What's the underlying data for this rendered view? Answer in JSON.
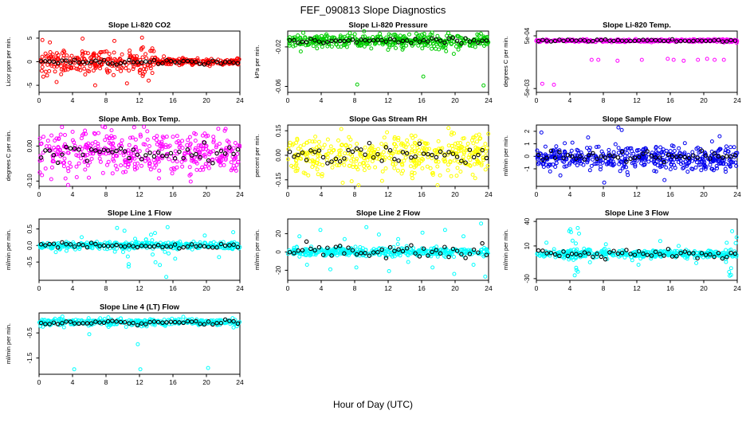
{
  "title": "FEF_090813  Slope Diagnostics",
  "xlabel": "Hour of Day (UTC)",
  "x_ticks": [
    0,
    4,
    8,
    12,
    16,
    20,
    24
  ],
  "marker_style": "open-circle",
  "overlay_color": "#000000",
  "chart_data": [
    {
      "seed": 101,
      "type": "scatter",
      "title": "Slope Li-820 CO2",
      "ylabel": "Licor ppm per min.",
      "color": "#FF0000",
      "xlim": [
        0,
        24
      ],
      "ylim": [
        -6.5,
        6.5
      ],
      "y_ticks": [
        {
          "v": -5,
          "label": "-5"
        },
        {
          "v": 0,
          "label": "0"
        },
        {
          "v": 5,
          "label": "5"
        }
      ],
      "band": {
        "center": 0,
        "spread": 1.3,
        "n": 420
      },
      "taper": {
        "after": 14,
        "spread": 0.35
      },
      "outliers": [
        [
          0.4,
          4.6
        ],
        [
          1.3,
          4.1
        ],
        [
          2.1,
          -4.3
        ],
        [
          5.2,
          4.9
        ],
        [
          6.7,
          -5.0
        ],
        [
          9.0,
          4.4
        ],
        [
          10.5,
          -4.6
        ],
        [
          12.3,
          5.1
        ],
        [
          13.1,
          -4.0
        ]
      ],
      "means": {
        "n": 48,
        "center": 0,
        "spread": 0.25
      }
    },
    {
      "seed": 202,
      "type": "scatter",
      "title": "Slope Li-820 Pressure",
      "ylabel": "kPa per min.",
      "color": "#00CD00",
      "xlim": [
        0,
        24
      ],
      "ylim": [
        -0.066,
        -0.004
      ],
      "y_ticks": [
        {
          "v": -0.02,
          "label": "-0.02"
        },
        {
          "v": -0.06,
          "label": "-0.06"
        }
      ],
      "band": {
        "center": -0.014,
        "spread": 0.0035,
        "n": 420
      },
      "outliers": [
        [
          8.3,
          -0.058
        ],
        [
          16.2,
          -0.05
        ],
        [
          23.4,
          -0.059
        ]
      ],
      "means": {
        "n": 48,
        "center": -0.014,
        "spread": 0.0012
      }
    },
    {
      "seed": 303,
      "type": "scatter",
      "title": "Slope Li-820 Temp.",
      "ylabel": "degrees C per min.",
      "color": "#FF00FF",
      "xlim": [
        0,
        24
      ],
      "ylim": [
        -0.0054,
        0.001
      ],
      "y_ticks": [
        {
          "v": 0.0005,
          "label": "5e-04"
        },
        {
          "v": -0.005,
          "label": "-5e-03"
        }
      ],
      "band": {
        "center": 0.0,
        "spread": 7e-05,
        "n": 400
      },
      "outliers": [
        [
          0.7,
          -0.0045
        ],
        [
          2.1,
          -0.0046
        ],
        [
          6.6,
          -0.002
        ],
        [
          7.4,
          -0.002
        ],
        [
          9.7,
          -0.0021
        ],
        [
          12.6,
          -0.002
        ],
        [
          15.7,
          -0.0019
        ],
        [
          16.4,
          -0.002
        ],
        [
          17.6,
          -0.0021
        ],
        [
          19.3,
          -0.002
        ],
        [
          20.4,
          -0.0019
        ],
        [
          21.3,
          -0.002
        ],
        [
          22.4,
          -0.002
        ]
      ],
      "means": {
        "n": 48,
        "center": 0.0,
        "spread": 5e-05
      }
    },
    {
      "seed": 404,
      "type": "scatter",
      "title": "Slope Amb. Box Temp.",
      "ylabel": "degrees C per min.",
      "color": "#FF00FF",
      "xlim": [
        0,
        24
      ],
      "ylim": [
        -0.115,
        0.06
      ],
      "y_ticks": [
        {
          "v": 0.0,
          "label": "0.00"
        },
        {
          "v": -0.1,
          "label": "-0.10"
        }
      ],
      "band": {
        "center": -0.02,
        "spread": 0.032,
        "n": 430
      },
      "outliers": [],
      "means": {
        "n": 48,
        "center": -0.02,
        "spread": 0.012
      }
    },
    {
      "seed": 505,
      "type": "scatter",
      "title": "Slope Gas Stream RH",
      "ylabel": "percent per min.",
      "color": "#FFFF00",
      "xlim": [
        0,
        24
      ],
      "ylim": [
        -0.19,
        0.185
      ],
      "y_ticks": [
        {
          "v": 0.15,
          "label": "0.15"
        },
        {
          "v": 0.0,
          "label": "0.00"
        },
        {
          "v": -0.15,
          "label": "-0.15"
        }
      ],
      "band": {
        "center": 0,
        "spread": 0.065,
        "n": 430
      },
      "outliers": [],
      "means": {
        "n": 48,
        "center": 0,
        "spread": 0.03
      }
    },
    {
      "seed": 606,
      "type": "scatter",
      "title": "Slope Sample Flow",
      "ylabel": "ml/min per min.",
      "color": "#0000EE",
      "xlim": [
        0,
        24
      ],
      "ylim": [
        -2.4,
        2.5
      ],
      "y_ticks": [
        {
          "v": -1,
          "label": "-1"
        },
        {
          "v": 0,
          "label": "0"
        },
        {
          "v": 1,
          "label": "1"
        },
        {
          "v": 2,
          "label": "2"
        }
      ],
      "band": {
        "center": -0.15,
        "spread": 0.5,
        "n": 460
      },
      "outliers": [
        [
          0.6,
          1.9
        ],
        [
          9.8,
          2.3
        ],
        [
          10.2,
          2.1
        ],
        [
          21.9,
          1.6
        ],
        [
          8.1,
          -2.1
        ],
        [
          15.3,
          -1.9
        ]
      ],
      "means": {
        "n": 48,
        "center": 0,
        "spread": 0.2
      }
    },
    {
      "seed": 707,
      "type": "scatter",
      "title": "Slope Line 1 Flow",
      "ylabel": "ml/min per min.",
      "color": "#00FFFF",
      "xlim": [
        0,
        24
      ],
      "ylim": [
        -1.05,
        0.8
      ],
      "y_ticks": [
        {
          "v": 0.5,
          "label": "0.5"
        },
        {
          "v": 0.0,
          "label": "0.0"
        },
        {
          "v": -0.5,
          "label": "-0.5"
        }
      ],
      "band": {
        "center": 0,
        "spread": 0.05,
        "n": 380
      },
      "clusters": [
        {
          "x0": 9,
          "x1": 16.5,
          "n": 26,
          "y0": -0.65,
          "y1": 0.6
        }
      ],
      "outliers": [
        [
          15.2,
          -0.95
        ],
        [
          19.8,
          0.3
        ],
        [
          21.5,
          -0.35
        ],
        [
          23.2,
          0.4
        ],
        [
          5.1,
          0.25
        ],
        [
          2.0,
          -0.2
        ]
      ],
      "means": {
        "n": 48,
        "center": 0,
        "spread": 0.04
      }
    },
    {
      "seed": 808,
      "type": "scatter",
      "title": "Slope Line 2 Flow",
      "ylabel": "ml/min per min.",
      "color": "#00FFFF",
      "xlim": [
        0,
        24
      ],
      "ylim": [
        -31,
        36
      ],
      "y_ticks": [
        {
          "v": -20,
          "label": "-20"
        },
        {
          "v": 0,
          "label": "0"
        },
        {
          "v": 20,
          "label": "20"
        }
      ],
      "band": {
        "center": 0,
        "spread": 2.2,
        "n": 400
      },
      "outliers": [
        [
          1.4,
          17
        ],
        [
          2.3,
          -14
        ],
        [
          3.9,
          24
        ],
        [
          5.1,
          -19
        ],
        [
          6.8,
          14
        ],
        [
          8.2,
          -17
        ],
        [
          9.4,
          27
        ],
        [
          10.9,
          19
        ],
        [
          12.1,
          -21
        ],
        [
          13.2,
          14
        ],
        [
          14.4,
          -11
        ],
        [
          16.1,
          21
        ],
        [
          17.3,
          -17
        ],
        [
          18.8,
          24
        ],
        [
          19.9,
          -24
        ],
        [
          21.0,
          17
        ],
        [
          22.2,
          -14
        ],
        [
          23.1,
          31
        ],
        [
          23.6,
          -27
        ]
      ],
      "means": {
        "n": 48,
        "center": 0,
        "spread": 4
      }
    },
    {
      "seed": 909,
      "type": "scatter",
      "title": "Slope Line 3 Flow",
      "ylabel": "ml/min per min.",
      "color": "#00FFFF",
      "xlim": [
        0,
        24
      ],
      "ylim": [
        -32,
        43
      ],
      "y_ticks": [
        {
          "v": -30,
          "label": "-30"
        },
        {
          "v": 10,
          "label": "10"
        },
        {
          "v": 40,
          "label": "40"
        }
      ],
      "band": {
        "center": 0,
        "spread": 2.5,
        "n": 400
      },
      "clusters": [
        {
          "x0": 3.8,
          "x1": 5.2,
          "n": 14,
          "y0": -26,
          "y1": 40
        },
        {
          "x0": 22.6,
          "x1": 24,
          "n": 12,
          "y0": -30,
          "y1": 36
        }
      ],
      "outliers": [
        [
          1.2,
          14
        ],
        [
          6.4,
          -10
        ],
        [
          8.3,
          12
        ],
        [
          12.2,
          -13
        ],
        [
          14.8,
          16
        ],
        [
          17.0,
          10
        ],
        [
          19.1,
          -11
        ]
      ],
      "means": {
        "n": 48,
        "center": 0,
        "spread": 3
      }
    },
    {
      "seed": 1010,
      "type": "scatter",
      "title": "Slope Line 4 (LT) Flow",
      "ylabel": "ml/min per min.",
      "color": "#00FFFF",
      "xlim": [
        0,
        24
      ],
      "ylim": [
        -2.15,
        0.3
      ],
      "y_ticks": [
        {
          "v": -0.5,
          "label": "-0.5"
        },
        {
          "v": -1.5,
          "label": "-1.5"
        }
      ],
      "band": {
        "center": -0.07,
        "spread": 0.07,
        "n": 360
      },
      "outliers": [
        [
          4.2,
          -1.95
        ],
        [
          11.8,
          -0.95
        ],
        [
          12.1,
          -1.95
        ],
        [
          20.2,
          -1.9
        ],
        [
          6.0,
          -0.55
        ]
      ],
      "means": {
        "n": 48,
        "center": -0.08,
        "spread": 0.05
      }
    }
  ]
}
